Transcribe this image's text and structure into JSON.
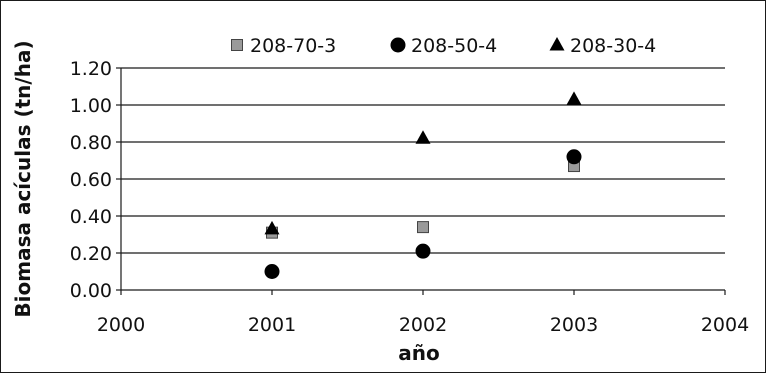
{
  "chart_data": {
    "type": "scatter",
    "title": "",
    "xlabel": "año",
    "ylabel": "Biomasa acículas (tn/ha)",
    "xlim": [
      2000,
      2004
    ],
    "ylim": [
      0,
      1.2
    ],
    "x_ticks": [
      2000,
      2001,
      2002,
      2003,
      2004
    ],
    "y_ticks": [
      0,
      0.2,
      0.4,
      0.6,
      0.8,
      1.0,
      1.2
    ],
    "x_tick_labels": [
      "2000",
      "2001",
      "2002",
      "2003",
      "2004"
    ],
    "y_tick_labels": [
      "0.00",
      "0.20",
      "0.40",
      "0.60",
      "0.80",
      "1.00",
      "1.20"
    ],
    "grid": "horizontal",
    "legend_position": "top",
    "series": [
      {
        "name": "208-70-3",
        "marker": "square",
        "color": "#9a9a9a",
        "points": [
          {
            "x": 2001,
            "y": 0.31
          },
          {
            "x": 2002,
            "y": 0.34
          },
          {
            "x": 2003,
            "y": 0.67
          }
        ]
      },
      {
        "name": "208-50-4",
        "marker": "circle",
        "color": "#000000",
        "points": [
          {
            "x": 2001,
            "y": 0.1
          },
          {
            "x": 2002,
            "y": 0.21
          },
          {
            "x": 2003,
            "y": 0.72
          }
        ]
      },
      {
        "name": "208-30-4",
        "marker": "triangle",
        "color": "#000000",
        "points": [
          {
            "x": 2001,
            "y": 0.33
          },
          {
            "x": 2002,
            "y": 0.82
          },
          {
            "x": 2003,
            "y": 1.03
          }
        ]
      }
    ]
  }
}
